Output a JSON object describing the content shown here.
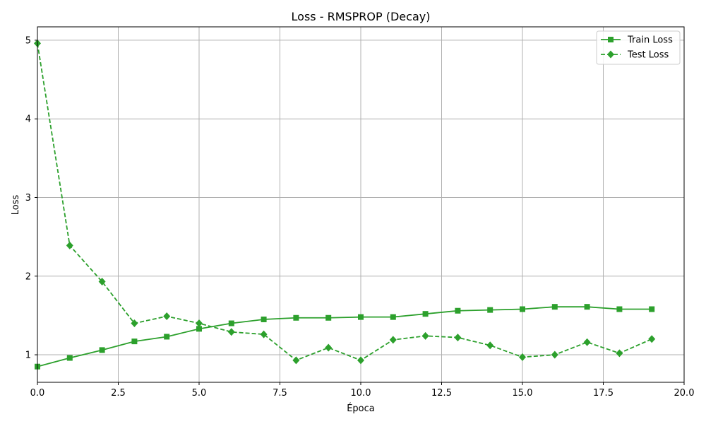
{
  "chart_data": {
    "type": "line",
    "title": "Loss - RMSPROP (Decay)",
    "xlabel": "Época",
    "ylabel": "Loss",
    "xlim": [
      0,
      20
    ],
    "ylim": [
      0.65,
      5.17
    ],
    "xticks": [
      0,
      2.5,
      5,
      7.5,
      10,
      12.5,
      15,
      17.5,
      20
    ],
    "xtick_labels": [
      "0.0",
      "2.5",
      "5.0",
      "7.5",
      "10.0",
      "12.5",
      "15.0",
      "17.5",
      "20.0"
    ],
    "yticks": [
      1,
      2,
      3,
      4,
      5
    ],
    "ytick_labels": [
      "1",
      "2",
      "3",
      "4",
      "5"
    ],
    "grid": true,
    "legend_position": "top-right",
    "x": [
      0,
      1,
      2,
      3,
      4,
      5,
      6,
      7,
      8,
      9,
      10,
      11,
      12,
      13,
      14,
      15,
      16,
      17,
      18,
      19
    ],
    "series": [
      {
        "name": "Train Loss",
        "color": "#2ca02c",
        "line_style": "solid",
        "marker": "square",
        "values": [
          0.85,
          0.96,
          1.06,
          1.17,
          1.23,
          1.33,
          1.4,
          1.45,
          1.47,
          1.47,
          1.48,
          1.48,
          1.52,
          1.56,
          1.57,
          1.58,
          1.61,
          1.61,
          1.58,
          1.58
        ]
      },
      {
        "name": "Test Loss",
        "color": "#2ca02c",
        "line_style": "dashed",
        "marker": "diamond",
        "values": [
          4.96,
          2.39,
          1.93,
          1.4,
          1.49,
          1.4,
          1.29,
          1.26,
          0.93,
          1.09,
          0.93,
          1.19,
          1.24,
          1.22,
          1.12,
          0.97,
          1.0,
          1.16,
          1.02,
          1.2
        ]
      }
    ]
  }
}
